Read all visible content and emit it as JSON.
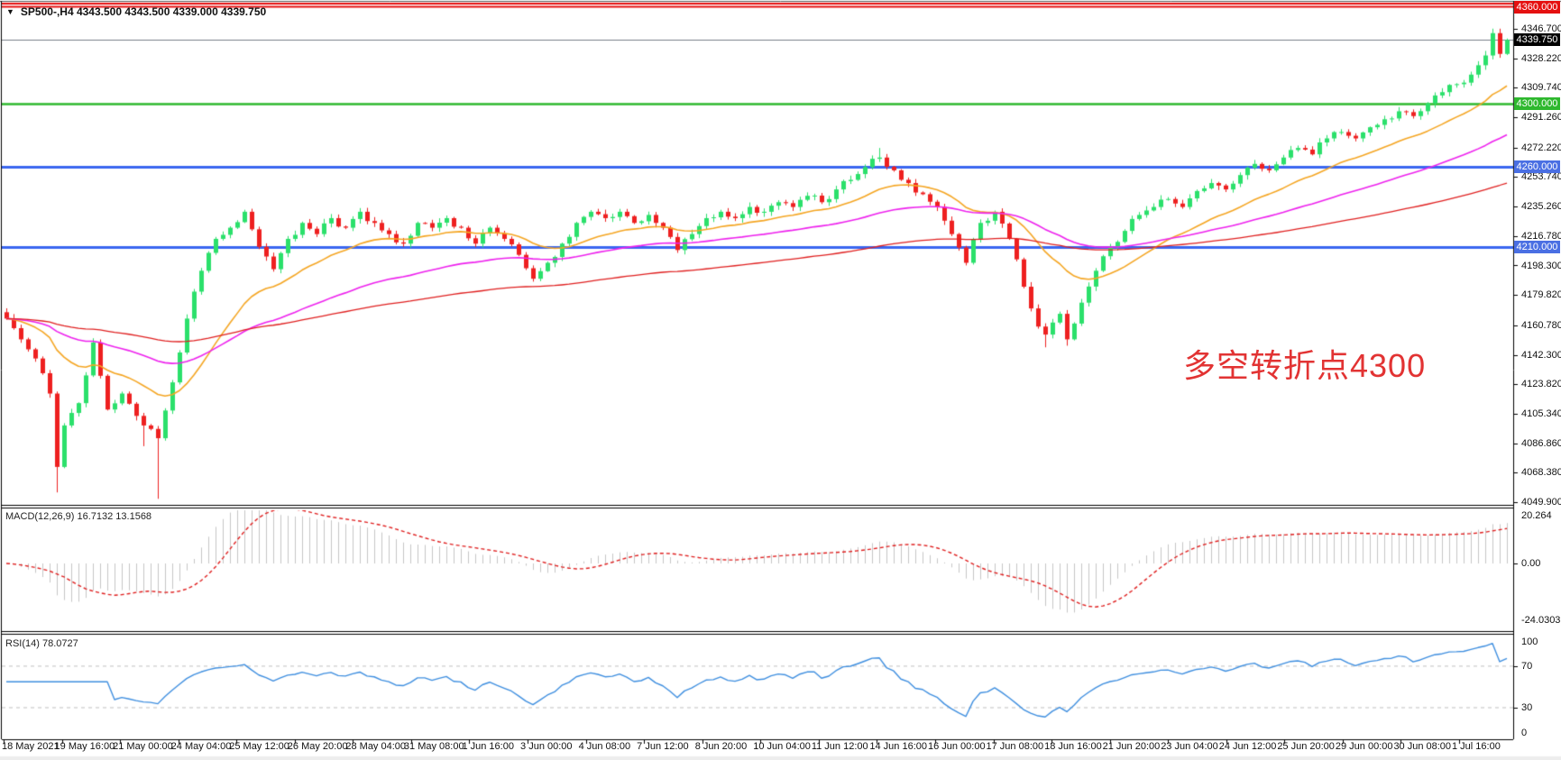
{
  "header": {
    "dropdown_icon": "▼",
    "title": "SP500-,H4  4343.500 4343.500 4339.000 4339.750"
  },
  "main_chart": {
    "annotation": {
      "text": "多空转折点4300",
      "color": "#e23333"
    },
    "current_price_badge": {
      "text": "4339.750",
      "bg": "#000000",
      "value": 4339.75
    },
    "level_badges": [
      {
        "text": "4360.000",
        "bg": "#e51010",
        "value": 4360.0
      },
      {
        "text": "4300.000",
        "bg": "#2eb82e",
        "value": 4300.0
      },
      {
        "text": "4260.000",
        "bg": "#4a6fe3",
        "value": 4260.0
      },
      {
        "text": "4210.000",
        "bg": "#4a6fe3",
        "value": 4210.0
      }
    ],
    "price_axis_labels": [
      "4346.700",
      "4328.220",
      "4309.740",
      "4291.260",
      "4272.220",
      "4253.740",
      "4235.260",
      "4216.780",
      "4198.300",
      "4179.820",
      "4160.780",
      "4142.300",
      "4123.820",
      "4105.340",
      "4086.860",
      "4068.380",
      "4049.900"
    ]
  },
  "macd_panel": {
    "label": "MACD(12,26,9) 16.7132 13.1568",
    "axis_labels": [
      {
        "text": "20.264",
        "value": 20.264
      },
      {
        "text": "0.00",
        "value": 0.0
      },
      {
        "text": "-24.0303",
        "value": -24.0303
      }
    ]
  },
  "rsi_panel": {
    "label": "RSI(14) 78.0727",
    "axis_labels": [
      {
        "text": "100",
        "value": 100
      },
      {
        "text": "70",
        "value": 70
      },
      {
        "text": "30",
        "value": 30
      },
      {
        "text": "0",
        "value": 0
      }
    ]
  },
  "time_axis": {
    "labels": [
      "18 May 2021",
      "19 May 16:00",
      "21 May 00:00",
      "24 May 04:00",
      "25 May 12:00",
      "26 May 20:00",
      "28 May 04:00",
      "31 May 08:00",
      "1 Jun 16:00",
      "3 Jun 00:00",
      "4 Jun 08:00",
      "7 Jun 12:00",
      "8 Jun 20:00",
      "10 Jun 04:00",
      "11 Jun 12:00",
      "14 Jun 16:00",
      "16 Jun 00:00",
      "17 Jun 08:00",
      "18 Jun 16:00",
      "21 Jun 20:00",
      "23 Jun 04:00",
      "24 Jun 12:00",
      "25 Jun 20:00",
      "29 Jun 00:00",
      "30 Jun 08:00",
      "1 Jul 16:00"
    ]
  },
  "colors": {
    "bull_candle": "#2be06b",
    "bear_candle": "#ee2020",
    "ma_fast": "#f5a623",
    "ma_medium": "#ee22ee",
    "ma_slow": "#e02020",
    "level_red": "#e51010",
    "level_green": "#2eb82e",
    "level_blue": "#3a66f0",
    "current_price_line": "#778089",
    "macd_histogram": "#c6c6c6",
    "macd_signal": "#e02020",
    "rsi_line": "#3f8fe0",
    "rsi_levels": "#c0c0c0",
    "border": "#000000"
  },
  "chart_data": {
    "type": "candlestick",
    "symbol": "SP500-",
    "timeframe": "H4",
    "ohlc_current": {
      "open": 4343.5,
      "high": 4343.5,
      "low": 4339.0,
      "close": 4339.75
    },
    "current_price": 4339.75,
    "y_axis_ticks": [
      4346.7,
      4328.22,
      4309.74,
      4291.26,
      4272.22,
      4253.74,
      4235.26,
      4216.78,
      4198.3,
      4179.82,
      4160.78,
      4142.3,
      4123.82,
      4105.34,
      4086.86,
      4068.38,
      4049.9
    ],
    "y_axis_range": [
      4049.9,
      4360.0
    ],
    "horizontal_levels": [
      {
        "price": 4360.0,
        "color": "#e51010",
        "style": "double"
      },
      {
        "price": 4300.0,
        "color": "#2eb82e",
        "style": "solid"
      },
      {
        "price": 4260.0,
        "color": "#3a66f0",
        "style": "solid"
      },
      {
        "price": 4210.0,
        "color": "#3a66f0",
        "style": "solid"
      }
    ],
    "annotation": {
      "text": "多空转折点4300"
    },
    "moving_averages": [
      {
        "name": "fast-ma",
        "period": 20,
        "color": "#f5a623"
      },
      {
        "name": "medium-ma",
        "period": 55,
        "color": "#ee22ee"
      },
      {
        "name": "slow-ma",
        "period": 130,
        "color": "#e02020"
      }
    ],
    "candle_count": 209,
    "price_path_anchors": [
      [
        0,
        4165
      ],
      [
        2,
        4152
      ],
      [
        4,
        4140
      ],
      [
        6,
        4118
      ],
      [
        7,
        4072,
        4056,
        null
      ],
      [
        8,
        4098
      ],
      [
        10,
        4112
      ],
      [
        12,
        4150
      ],
      [
        14,
        4108
      ],
      [
        16,
        4118
      ],
      [
        18,
        4104
      ],
      [
        19,
        4098,
        4085,
        null
      ],
      [
        21,
        4090,
        4052,
        null
      ],
      [
        23,
        4125
      ],
      [
        25,
        4165
      ],
      [
        27,
        4195
      ],
      [
        29,
        4215
      ],
      [
        31,
        4222
      ],
      [
        33,
        4232
      ],
      [
        35,
        4210
      ],
      [
        37,
        4196
      ],
      [
        39,
        4215
      ],
      [
        41,
        4225
      ],
      [
        43,
        4218
      ],
      [
        45,
        4228
      ],
      [
        47,
        4222
      ],
      [
        49,
        4232
      ],
      [
        51,
        4225
      ],
      [
        53,
        4218
      ],
      [
        55,
        4212
      ],
      [
        57,
        4225
      ],
      [
        59,
        4222
      ],
      [
        61,
        4228
      ],
      [
        63,
        4222
      ],
      [
        65,
        4212
      ],
      [
        67,
        4222
      ],
      [
        69,
        4215
      ],
      [
        71,
        4205
      ],
      [
        73,
        4190
      ],
      [
        75,
        4200
      ],
      [
        77,
        4212
      ],
      [
        79,
        4225
      ],
      [
        81,
        4232
      ],
      [
        83,
        4228
      ],
      [
        85,
        4232
      ],
      [
        87,
        4225
      ],
      [
        89,
        4230
      ],
      [
        91,
        4222
      ],
      [
        93,
        4208
      ],
      [
        95,
        4218
      ],
      [
        97,
        4228
      ],
      [
        99,
        4232
      ],
      [
        101,
        4228
      ],
      [
        103,
        4235
      ],
      [
        105,
        4232
      ],
      [
        107,
        4238
      ],
      [
        109,
        4235
      ],
      [
        111,
        4242
      ],
      [
        113,
        4238
      ],
      [
        115,
        4246
      ],
      [
        117,
        4252
      ],
      [
        119,
        4260
      ],
      [
        121,
        4266,
        null,
        4272
      ],
      [
        123,
        4258
      ],
      [
        125,
        4250
      ],
      [
        127,
        4243
      ],
      [
        129,
        4235
      ],
      [
        131,
        4218
      ],
      [
        133,
        4200
      ],
      [
        135,
        4225
      ],
      [
        137,
        4232
      ],
      [
        139,
        4215
      ],
      [
        141,
        4185
      ],
      [
        143,
        4160
      ],
      [
        144,
        4155,
        4147,
        null
      ],
      [
        146,
        4168
      ],
      [
        147,
        4152,
        4148,
        null
      ],
      [
        149,
        4175
      ],
      [
        151,
        4195
      ],
      [
        153,
        4210
      ],
      [
        155,
        4220
      ],
      [
        157,
        4230
      ],
      [
        159,
        4235
      ],
      [
        161,
        4240
      ],
      [
        163,
        4235
      ],
      [
        165,
        4245
      ],
      [
        167,
        4250
      ],
      [
        169,
        4246
      ],
      [
        171,
        4255
      ],
      [
        173,
        4262
      ],
      [
        175,
        4258
      ],
      [
        177,
        4266
      ],
      [
        179,
        4272
      ],
      [
        181,
        4268
      ],
      [
        183,
        4278
      ],
      [
        185,
        4282
      ],
      [
        187,
        4278
      ],
      [
        189,
        4285
      ],
      [
        191,
        4290
      ],
      [
        193,
        4295
      ],
      [
        195,
        4292
      ],
      [
        197,
        4300
      ],
      [
        199,
        4307
      ],
      [
        201,
        4312
      ],
      [
        203,
        4318
      ],
      [
        205,
        4330
      ],
      [
        206,
        4344,
        null,
        4346.7
      ],
      [
        207,
        4331
      ],
      [
        208,
        4339.75
      ]
    ],
    "indicators": {
      "macd": {
        "params": [
          12,
          26,
          9
        ],
        "main": 16.7132,
        "signal": 13.1568,
        "axis_max": 20.264,
        "axis_min": -24.0303
      },
      "rsi": {
        "period": 14,
        "value": 78.0727,
        "levels": [
          70,
          30
        ],
        "axis": [
          0,
          100
        ]
      }
    },
    "x_axis_labels": [
      "18 May 2021",
      "19 May 16:00",
      "21 May 00:00",
      "24 May 04:00",
      "25 May 12:00",
      "26 May 20:00",
      "28 May 04:00",
      "31 May 08:00",
      "1 Jun 16:00",
      "3 Jun 00:00",
      "4 Jun 08:00",
      "7 Jun 12:00",
      "8 Jun 20:00",
      "10 Jun 04:00",
      "11 Jun 12:00",
      "14 Jun 16:00",
      "16 Jun 00:00",
      "17 Jun 08:00",
      "18 Jun 16:00",
      "21 Jun 20:00",
      "23 Jun 04:00",
      "24 Jun 12:00",
      "25 Jun 20:00",
      "29 Jun 00:00",
      "30 Jun 08:00",
      "1 Jul 16:00"
    ]
  }
}
